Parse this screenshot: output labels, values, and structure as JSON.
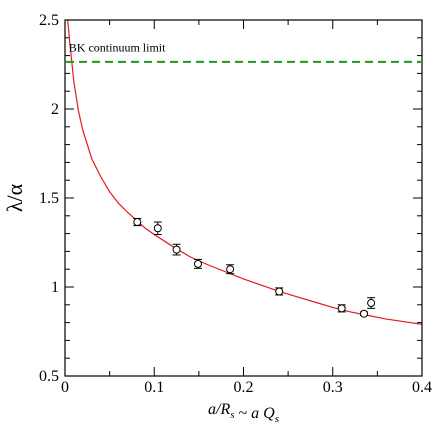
{
  "chart_data": {
    "type": "scatter",
    "xlabel": {
      "parts": [
        {
          "text": "a/R",
          "italic": true
        },
        {
          "text": "s",
          "italic": true,
          "sub": true
        },
        {
          "text": " ~ ",
          "italic": false
        },
        {
          "text": "a Q",
          "italic": true
        },
        {
          "text": "s",
          "italic": true,
          "sub": true
        }
      ]
    },
    "ylabel": "λ/α",
    "xlim": [
      0,
      0.4
    ],
    "ylim": [
      0.5,
      2.5
    ],
    "x_ticks": [
      "0",
      "0.1",
      "0.2",
      "0.3",
      "0.4"
    ],
    "y_ticks": [
      "0.5",
      "1",
      "1.5",
      "2",
      "2.5"
    ],
    "x_tick_values": [
      0,
      0.1,
      0.2,
      0.3,
      0.4
    ],
    "y_tick_values": [
      0.5,
      1,
      1.5,
      2,
      2.5
    ],
    "x_minor_step": 0.05,
    "y_minor_step": 0.1,
    "grid": false,
    "series": [
      {
        "type": "scatter",
        "marker": "open-circle",
        "color": "#000000",
        "points": [
          {
            "x": 0.081,
            "y": 1.365,
            "err": 0.02
          },
          {
            "x": 0.104,
            "y": 1.33,
            "err": 0.035
          },
          {
            "x": 0.125,
            "y": 1.21,
            "err": 0.03
          },
          {
            "x": 0.149,
            "y": 1.13,
            "err": 0.025
          },
          {
            "x": 0.185,
            "y": 1.1,
            "err": 0.025
          },
          {
            "x": 0.24,
            "y": 0.975,
            "err": 0.02
          },
          {
            "x": 0.31,
            "y": 0.88,
            "err": 0.02
          },
          {
            "x": 0.335,
            "y": 0.85,
            "err": 0.01
          },
          {
            "x": 0.343,
            "y": 0.91,
            "err": 0.03
          }
        ]
      },
      {
        "type": "line",
        "color": "#e41a1c",
        "x": [
          0.003,
          0.006,
          0.01,
          0.015,
          0.02,
          0.03,
          0.04,
          0.05,
          0.06,
          0.07,
          0.08,
          0.09,
          0.1,
          0.12,
          0.14,
          0.16,
          0.18,
          0.2,
          0.22,
          0.24,
          0.26,
          0.28,
          0.3,
          0.32,
          0.34,
          0.36,
          0.38,
          0.4
        ],
        "y": [
          2.5,
          2.34,
          2.15,
          1.99,
          1.88,
          1.72,
          1.62,
          1.535,
          1.47,
          1.42,
          1.375,
          1.33,
          1.295,
          1.23,
          1.17,
          1.125,
          1.085,
          1.045,
          1.01,
          0.975,
          0.945,
          0.915,
          0.885,
          0.86,
          0.84,
          0.82,
          0.805,
          0.79
        ]
      },
      {
        "type": "hline",
        "style": "dashed",
        "color": "#1a9a1a",
        "y": 2.265
      }
    ],
    "annotations": [
      {
        "text": "BK continuum limit",
        "x": 0.002,
        "y": 2.345
      }
    ]
  }
}
